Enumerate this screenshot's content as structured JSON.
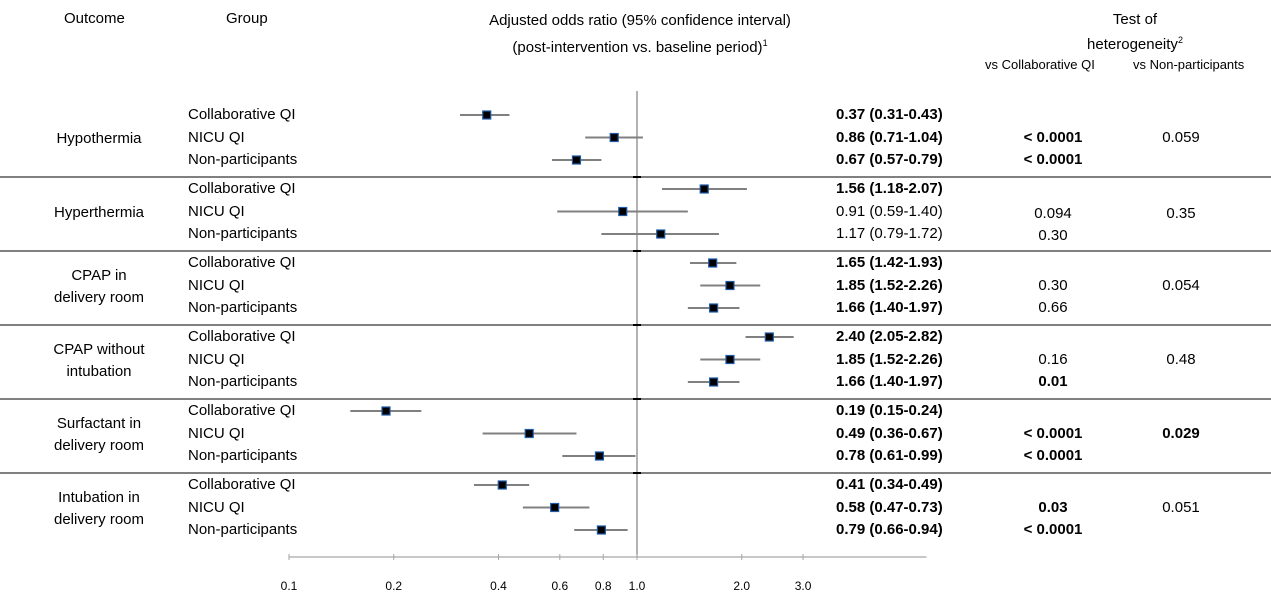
{
  "headers": {
    "outcome": "Outcome",
    "group": "Group",
    "or_line1": "Adjusted odds ratio (95% confidence interval)",
    "or_line2": "(post-intervention vs. baseline period)",
    "or_sup": "1",
    "het_line1": "Test of",
    "het_line2": "heterogeneity",
    "het_sup": "2",
    "vs_collab": "vs Collaborative QI",
    "vs_non": "vs Non-participants"
  },
  "chart_data": {
    "type": "forest",
    "xscale": "log",
    "xlim": [
      0.1,
      4.0
    ],
    "ticks": [
      "0.1",
      "0.2",
      "0.4",
      "0.6",
      "0.8",
      "1.0",
      "2.0",
      "3.0"
    ],
    "tick_values": [
      0.1,
      0.2,
      0.4,
      0.6,
      0.8,
      1.0,
      2.0,
      3.0
    ],
    "reference_line": 1.0,
    "outcomes": [
      {
        "name_lines": [
          "Hypothermia"
        ],
        "groups": [
          {
            "name": "Collaborative QI",
            "or": 0.37,
            "lo": 0.31,
            "hi": 0.43,
            "label": "0.37 (0.31-0.43)",
            "bold": true
          },
          {
            "name": "NICU QI",
            "or": 0.86,
            "lo": 0.71,
            "hi": 1.04,
            "label": "0.86 (0.71-1.04)",
            "bold": true
          },
          {
            "name": "Non-participants",
            "or": 0.67,
            "lo": 0.57,
            "hi": 0.79,
            "label": "0.67 (0.57-0.79)",
            "bold": true
          }
        ],
        "vs_collab": [
          {
            "row": 1,
            "text": "< 0.0001",
            "bold": true
          },
          {
            "row": 2,
            "text": "< 0.0001",
            "bold": true
          }
        ],
        "vs_non": {
          "row": 1,
          "text": "0.059",
          "bold": false
        }
      },
      {
        "name_lines": [
          "Hyperthermia"
        ],
        "groups": [
          {
            "name": "Collaborative QI",
            "or": 1.56,
            "lo": 1.18,
            "hi": 2.07,
            "label": "1.56 (1.18-2.07)",
            "bold": true
          },
          {
            "name": "NICU QI",
            "or": 0.91,
            "lo": 0.59,
            "hi": 1.4,
            "label": "0.91 (0.59-1.40)",
            "bold": false
          },
          {
            "name": "Non-participants",
            "or": 1.17,
            "lo": 0.79,
            "hi": 1.72,
            "label": "1.17 (0.79-1.72)",
            "bold": false
          }
        ],
        "vs_collab": [
          {
            "row": 1.1,
            "text": "0.094",
            "bold": false
          },
          {
            "row": 2.1,
            "text": "0.30",
            "bold": false
          }
        ],
        "vs_non": {
          "row": 1.1,
          "text": "0.35",
          "bold": false
        }
      },
      {
        "name_lines": [
          "CPAP in",
          "delivery room"
        ],
        "groups": [
          {
            "name": "Collaborative QI",
            "or": 1.65,
            "lo": 1.42,
            "hi": 1.93,
            "label": "1.65 (1.42-1.93)",
            "bold": true
          },
          {
            "name": "NICU QI",
            "or": 1.85,
            "lo": 1.52,
            "hi": 2.26,
            "label": "1.85 (1.52-2.26)",
            "bold": true
          },
          {
            "name": "Non-participants",
            "or": 1.66,
            "lo": 1.4,
            "hi": 1.97,
            "label": "1.66 (1.40-1.97)",
            "bold": true
          }
        ],
        "vs_collab": [
          {
            "row": 1,
            "text": "0.30",
            "bold": false
          },
          {
            "row": 2,
            "text": "0.66",
            "bold": false
          }
        ],
        "vs_non": {
          "row": 1,
          "text": "0.054",
          "bold": false
        }
      },
      {
        "name_lines": [
          "CPAP without",
          "intubation"
        ],
        "groups": [
          {
            "name": "Collaborative QI",
            "or": 2.4,
            "lo": 2.05,
            "hi": 2.82,
            "label": "2.40 (2.05-2.82)",
            "bold": true
          },
          {
            "name": "NICU QI",
            "or": 1.85,
            "lo": 1.52,
            "hi": 2.26,
            "label": "1.85 (1.52-2.26)",
            "bold": true
          },
          {
            "name": "Non-participants",
            "or": 1.66,
            "lo": 1.4,
            "hi": 1.97,
            "label": "1.66 (1.40-1.97)",
            "bold": true
          }
        ],
        "vs_collab": [
          {
            "row": 1,
            "text": "0.16",
            "bold": false
          },
          {
            "row": 2,
            "text": "0.01",
            "bold": true
          }
        ],
        "vs_non": {
          "row": 1,
          "text": "0.48",
          "bold": false
        }
      },
      {
        "name_lines": [
          "Surfactant in",
          "delivery room"
        ],
        "groups": [
          {
            "name": "Collaborative QI",
            "or": 0.19,
            "lo": 0.15,
            "hi": 0.24,
            "label": "0.19 (0.15-0.24)",
            "bold": true
          },
          {
            "name": "NICU QI",
            "or": 0.49,
            "lo": 0.36,
            "hi": 0.67,
            "label": "0.49 (0.36-0.67)",
            "bold": true
          },
          {
            "name": "Non-participants",
            "or": 0.78,
            "lo": 0.61,
            "hi": 0.99,
            "label": "0.78 (0.61-0.99)",
            "bold": true
          }
        ],
        "vs_collab": [
          {
            "row": 1,
            "text": "< 0.0001",
            "bold": true
          },
          {
            "row": 2,
            "text": "< 0.0001",
            "bold": true
          }
        ],
        "vs_non": {
          "row": 1,
          "text": "0.029",
          "bold": true
        }
      },
      {
        "name_lines": [
          "Intubation in",
          "delivery room"
        ],
        "groups": [
          {
            "name": "Collaborative QI",
            "or": 0.41,
            "lo": 0.34,
            "hi": 0.49,
            "label": "0.41 (0.34-0.49)",
            "bold": true
          },
          {
            "name": "NICU QI",
            "or": 0.58,
            "lo": 0.47,
            "hi": 0.73,
            "label": "0.58 (0.47-0.73)",
            "bold": true
          },
          {
            "name": "Non-participants",
            "or": 0.79,
            "lo": 0.66,
            "hi": 0.94,
            "label": "0.79 (0.66-0.94)",
            "bold": true
          }
        ],
        "vs_collab": [
          {
            "row": 1,
            "text": "0.03",
            "bold": true
          },
          {
            "row": 2,
            "text": "< 0.0001",
            "bold": true
          }
        ],
        "vs_non": {
          "row": 1,
          "text": "0.051",
          "bold": false
        }
      }
    ],
    "colors": {
      "marker": "#000000",
      "marker_edge": "#1f5aa8",
      "whisker": "#808080",
      "axis": "#a6a6a6",
      "separator": "#000000"
    }
  }
}
